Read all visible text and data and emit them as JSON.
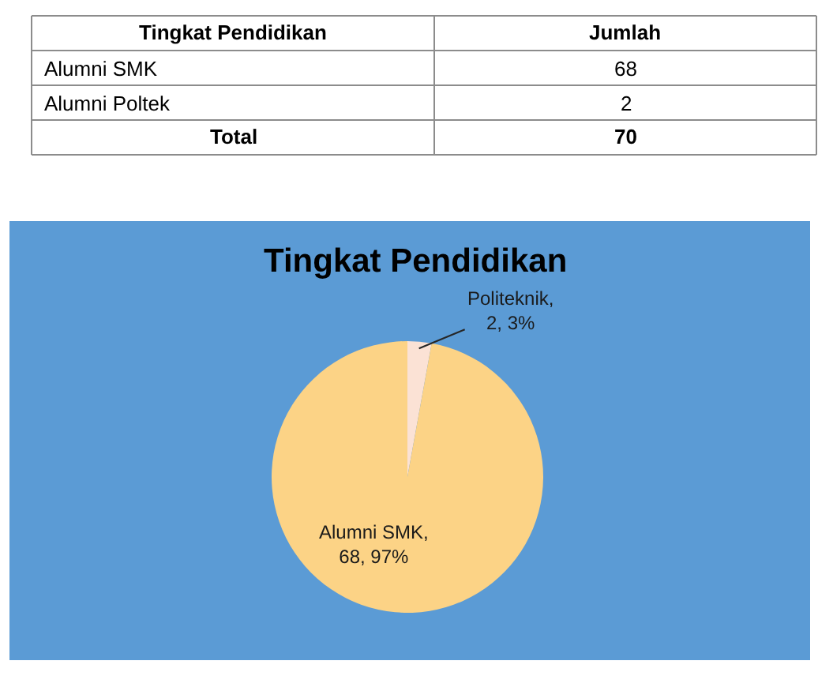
{
  "chart_data": [
    {
      "type": "other",
      "categories": [
        "Alumni SMK",
        "Alumni Poltek",
        "Total"
      ],
      "values": [
        68,
        2,
        70
      ],
      "data_labels": true,
      "annotations": [
        "Tingkat Pendidikan",
        "Jumlah"
      ]
    },
    {
      "type": "pie",
      "title": "Tingkat Pendidikan",
      "categories": [
        null,
        null
      ],
      "values": [
        2,
        68
      ],
      "colors": [
        "#fbe2d5",
        "#fcd386"
      ],
      "value_labels": [
        "Politeknik, 2, 3%",
        "Alumni SMK, 68, 97%"
      ],
      "legend": false
    }
  ]
}
